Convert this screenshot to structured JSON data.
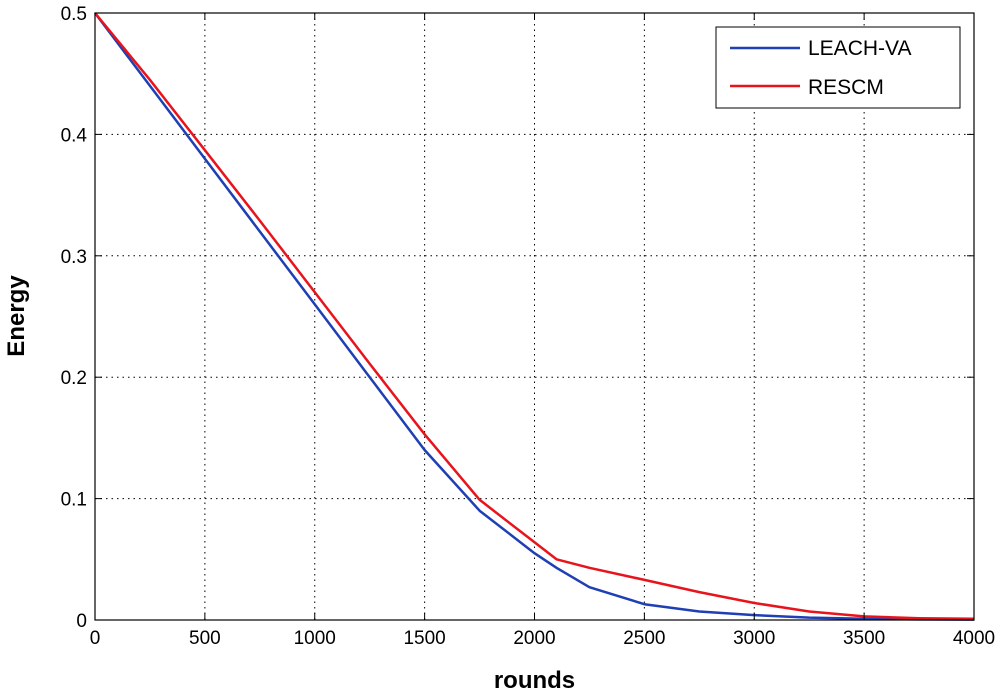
{
  "chart_data": {
    "type": "line",
    "title": "",
    "xlabel": "rounds",
    "ylabel": "Energy",
    "xlim": [
      0,
      4000
    ],
    "ylim": [
      0,
      0.5
    ],
    "xticks": [
      0,
      500,
      1000,
      1500,
      2000,
      2500,
      3000,
      3500,
      4000
    ],
    "yticks": [
      0,
      0.1,
      0.2,
      0.3,
      0.4,
      0.5
    ],
    "xtick_labels": [
      "0",
      "500",
      "1000",
      "1500",
      "2000",
      "2500",
      "3000",
      "3500",
      "4000"
    ],
    "ytick_labels": [
      "0",
      "0.1",
      "0.2",
      "0.3",
      "0.4",
      "0.5"
    ],
    "grid": true,
    "legend_position": "top-right",
    "series": [
      {
        "name": "LEACH-VA",
        "color": "#1f3fb4",
        "x": [
          0,
          250,
          500,
          750,
          1000,
          1250,
          1500,
          1750,
          2000,
          2100,
          2250,
          2500,
          2750,
          3000,
          3250,
          3500,
          3750,
          4000
        ],
        "y": [
          0.5,
          0.44,
          0.38,
          0.32,
          0.26,
          0.2,
          0.14,
          0.09,
          0.055,
          0.043,
          0.027,
          0.013,
          0.007,
          0.004,
          0.002,
          0.001,
          0.0005,
          0.0003
        ]
      },
      {
        "name": "RESCM",
        "color": "#e8141c",
        "x": [
          0,
          250,
          500,
          750,
          1000,
          1250,
          1500,
          1750,
          2000,
          2100,
          2250,
          2500,
          2750,
          3000,
          3250,
          3500,
          3750,
          4000
        ],
        "y": [
          0.5,
          0.445,
          0.387,
          0.329,
          0.27,
          0.211,
          0.153,
          0.099,
          0.064,
          0.05,
          0.043,
          0.033,
          0.023,
          0.014,
          0.007,
          0.003,
          0.0015,
          0.001
        ]
      }
    ]
  }
}
